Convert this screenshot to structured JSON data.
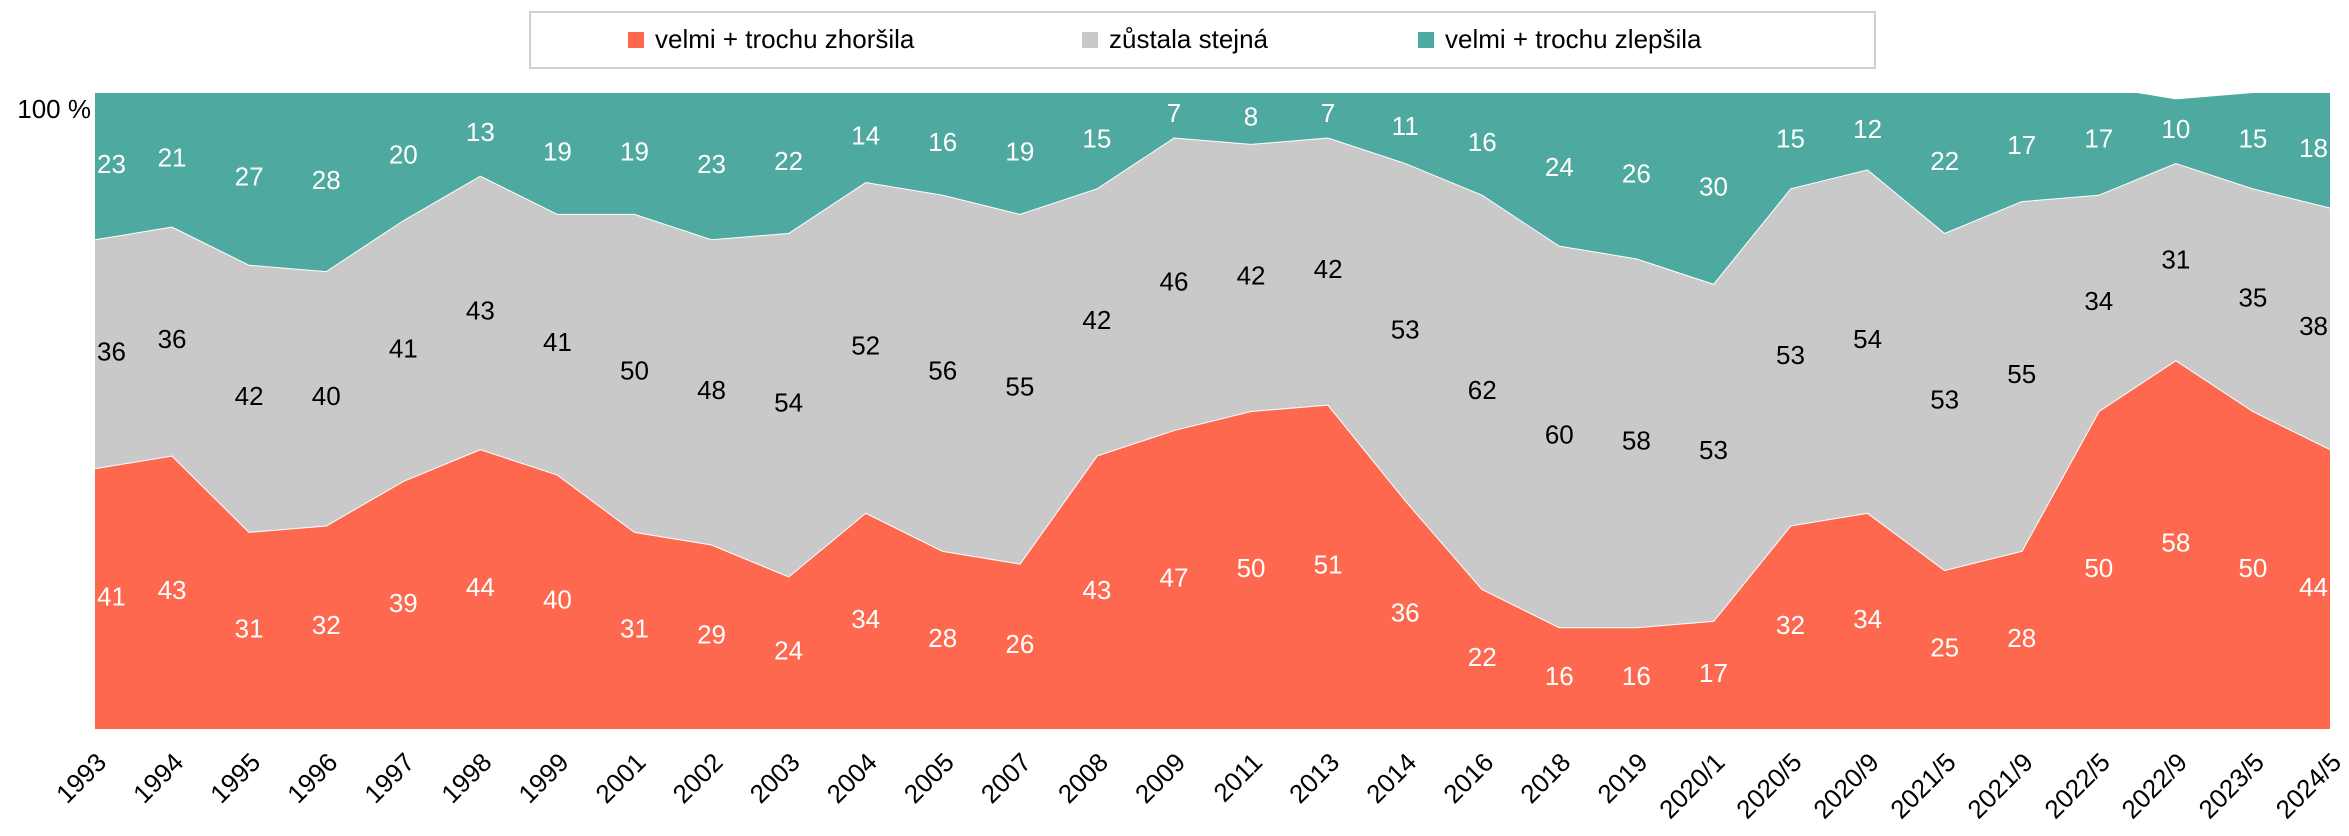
{
  "chart_data": {
    "type": "stacked_area",
    "categories": [
      "1993",
      "1994",
      "1995",
      "1996",
      "1997",
      "1998",
      "1999",
      "2001",
      "2002",
      "2003",
      "2004",
      "2005",
      "2007",
      "2008",
      "2009",
      "2011",
      "2013",
      "2014",
      "2016",
      "2018",
      "2019",
      "2020/1",
      "2020/5",
      "2020/9",
      "2021/5",
      "2021/9",
      "2022/5",
      "2022/9",
      "2023/5",
      "2024/5"
    ],
    "series": [
      {
        "name": "velmi + trochu zhoršila",
        "color": "#fe684e",
        "label_color": "#ffffff",
        "values": [
          41,
          43,
          31,
          32,
          39,
          44,
          40,
          31,
          29,
          24,
          34,
          28,
          26,
          43,
          47,
          50,
          51,
          36,
          22,
          16,
          16,
          17,
          32,
          34,
          25,
          28,
          50,
          58,
          50,
          44
        ]
      },
      {
        "name": "zůstala stejná",
        "color": "#c9c9c9",
        "label_color": "#000000",
        "values": [
          36,
          36,
          42,
          40,
          41,
          43,
          41,
          50,
          48,
          54,
          52,
          56,
          55,
          42,
          46,
          42,
          42,
          53,
          62,
          60,
          58,
          53,
          53,
          54,
          53,
          55,
          34,
          31,
          35,
          38
        ]
      },
      {
        "name": "velmi + trochu zlepšila",
        "color": "#4ea9a0",
        "label_color": "#ffffff",
        "values": [
          23,
          21,
          27,
          28,
          20,
          13,
          19,
          19,
          23,
          22,
          14,
          16,
          19,
          15,
          7,
          8,
          7,
          11,
          16,
          24,
          26,
          30,
          15,
          12,
          22,
          17,
          17,
          10,
          15,
          18
        ]
      }
    ],
    "ylim": [
      0,
      100
    ],
    "yticks": [
      {
        "value": 100,
        "label": "100 %"
      }
    ],
    "legend": "top"
  }
}
